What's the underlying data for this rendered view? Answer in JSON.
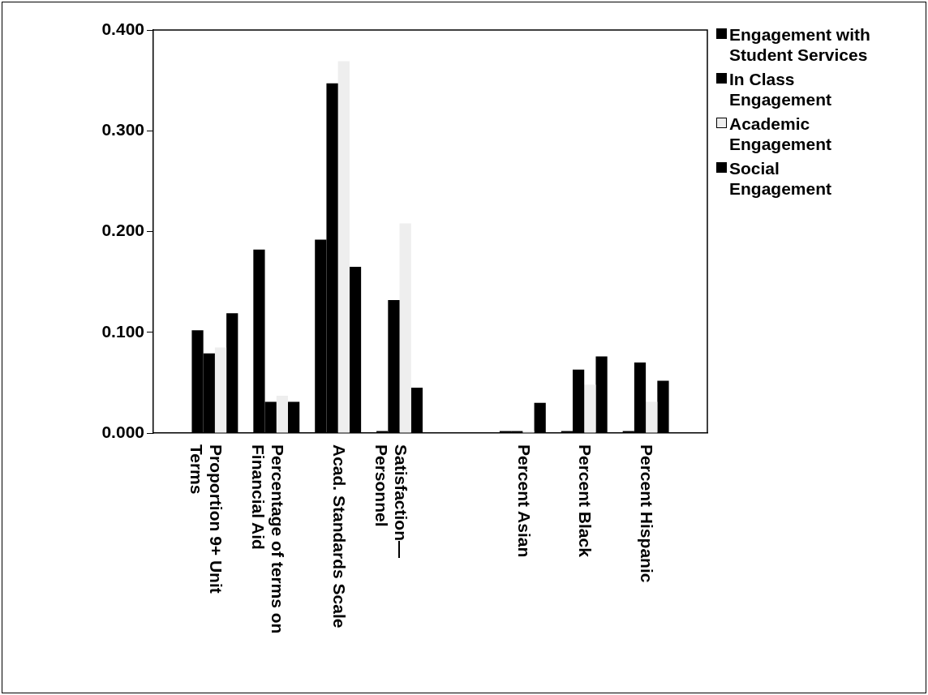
{
  "chart_data": {
    "type": "bar",
    "categories": [
      null,
      "Proportion 9+ Unit Terms",
      "Percentage of terms on Financial Aid",
      "Acad. Standards Scale",
      "Satisfaction—Personnel",
      null,
      "Percent Asian",
      "Percent Black",
      "Percent Hispanic",
      null
    ],
    "series": [
      {
        "name": "Engagement with Student Services",
        "color": "#000000",
        "values": [
          null,
          0.102,
          0.182,
          0.192,
          0.002,
          null,
          0.002,
          0.002,
          0.002,
          null
        ]
      },
      {
        "name": "In Class Engagement",
        "color": "#000000",
        "values": [
          null,
          0.079,
          0.031,
          0.347,
          0.132,
          null,
          0.002,
          0.063,
          0.07,
          null
        ]
      },
      {
        "name": "Academic Engagement",
        "color": "#eeeeee",
        "values": [
          null,
          0.085,
          0.037,
          0.369,
          0.208,
          null,
          0.002,
          0.048,
          0.031,
          null
        ]
      },
      {
        "name": "Social Engagement",
        "color": "#000000",
        "values": [
          null,
          0.119,
          0.031,
          0.165,
          0.045,
          null,
          0.03,
          0.076,
          0.052,
          null
        ]
      }
    ],
    "ylim": [
      0,
      0.4
    ],
    "yticks": [
      {
        "value": 0,
        "label": "0.000"
      },
      {
        "value": 0.1,
        "label": "0.100"
      },
      {
        "value": 0.2,
        "label": "0.200"
      },
      {
        "value": 0.3,
        "label": "0.300"
      },
      {
        "value": 0.4,
        "label": "0.400"
      }
    ],
    "grid": false,
    "legend": "top right"
  }
}
